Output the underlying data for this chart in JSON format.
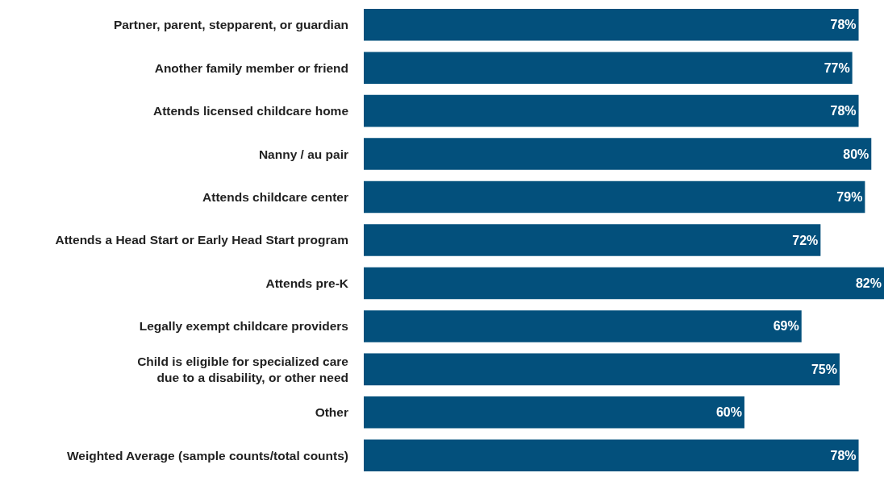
{
  "chart_data": {
    "type": "bar",
    "orientation": "horizontal",
    "categories": [
      "Partner, parent, stepparent, or guardian",
      "Another family member or friend",
      "Attends licensed childcare home",
      "Nanny / au pair",
      "Attends childcare center",
      "Attends a Head Start or Early Head Start program",
      "Attends pre-K",
      "Legally exempt childcare providers",
      "Child is eligible for specialized care\ndue to a disability, or other need",
      "Other",
      "Weighted Average (sample counts/total counts)"
    ],
    "values": [
      78,
      77,
      78,
      80,
      79,
      72,
      82,
      69,
      75,
      60,
      78
    ],
    "value_labels": [
      "78%",
      "77%",
      "78%",
      "80%",
      "79%",
      "72%",
      "82%",
      "69%",
      "75%",
      "60%",
      "78%"
    ],
    "color": "#03507c"
  }
}
